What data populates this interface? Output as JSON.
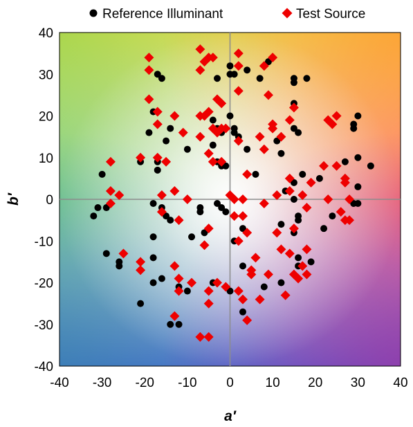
{
  "chart_data": {
    "type": "scatter",
    "xlabel": "a′",
    "ylabel": "b′",
    "xlim": [
      -40,
      40
    ],
    "ylim": [
      -40,
      40
    ],
    "x_ticks": [
      -40,
      -30,
      -20,
      -10,
      0,
      10,
      20,
      30,
      40
    ],
    "y_ticks": [
      -40,
      -30,
      -20,
      -10,
      0,
      10,
      20,
      30,
      40
    ],
    "grid": false,
    "legend_position": "top",
    "background": "a* b* color-space gradient",
    "series": [
      {
        "name": "Reference Illuminant",
        "marker": "circle",
        "color": "#000000",
        "points": [
          [
            -17,
            30
          ],
          [
            -16,
            29
          ],
          [
            0,
            32
          ],
          [
            -3,
            29
          ],
          [
            0,
            30
          ],
          [
            1,
            30
          ],
          [
            4,
            31
          ],
          [
            7,
            29
          ],
          [
            9,
            33
          ],
          [
            15,
            28
          ],
          [
            15,
            29
          ],
          [
            18,
            29
          ],
          [
            -14,
            17
          ],
          [
            -18,
            21
          ],
          [
            -19,
            16
          ],
          [
            -15,
            14
          ],
          [
            -4,
            19
          ],
          [
            -3,
            17
          ],
          [
            -2,
            16
          ],
          [
            0,
            20
          ],
          [
            1,
            17
          ],
          [
            2,
            15
          ],
          [
            4,
            12
          ],
          [
            10,
            17
          ],
          [
            15,
            23
          ],
          [
            15,
            17
          ],
          [
            16,
            16
          ],
          [
            29,
            18
          ],
          [
            29,
            17
          ],
          [
            30,
            20
          ],
          [
            -10,
            12
          ],
          [
            -21,
            9
          ],
          [
            -17,
            9
          ],
          [
            -17,
            7
          ],
          [
            -4,
            13
          ],
          [
            -3,
            9
          ],
          [
            -2,
            8
          ],
          [
            -1,
            8
          ],
          [
            1,
            16
          ],
          [
            6,
            6
          ],
          [
            11,
            14
          ],
          [
            12,
            11
          ],
          [
            13,
            2
          ],
          [
            15,
            4
          ],
          [
            15,
            0
          ],
          [
            17,
            6
          ],
          [
            21,
            5
          ],
          [
            27,
            9
          ],
          [
            30,
            10
          ],
          [
            30,
            3
          ],
          [
            33,
            8
          ],
          [
            -30,
            6
          ],
          [
            -31,
            -2
          ],
          [
            -32,
            -4
          ],
          [
            -29,
            -2
          ],
          [
            -18,
            -1
          ],
          [
            -16,
            -2
          ],
          [
            -15,
            -4
          ],
          [
            -7,
            -2
          ],
          [
            -7,
            -3
          ],
          [
            -3,
            -1
          ],
          [
            -2,
            -2
          ],
          [
            -1,
            -3
          ],
          [
            3,
            -7
          ],
          [
            1,
            -10
          ],
          [
            12,
            -6
          ],
          [
            15,
            -8
          ],
          [
            16,
            -4
          ],
          [
            16,
            -5
          ],
          [
            22,
            -7
          ],
          [
            24,
            -4
          ],
          [
            29,
            -1
          ],
          [
            30,
            -1
          ],
          [
            -18,
            -9
          ],
          [
            -14,
            -5
          ],
          [
            -9,
            -9
          ],
          [
            -6,
            -8
          ],
          [
            -29,
            -13
          ],
          [
            -26,
            -15
          ],
          [
            -26,
            -16
          ],
          [
            -18,
            -14
          ],
          [
            -18,
            -20
          ],
          [
            -16,
            -19
          ],
          [
            -12,
            -21
          ],
          [
            -4,
            -20
          ],
          [
            0,
            -22
          ],
          [
            3,
            -16
          ],
          [
            8,
            -21
          ],
          [
            12,
            -20
          ],
          [
            16,
            -14
          ],
          [
            16,
            -16
          ],
          [
            19,
            -15
          ],
          [
            -21,
            -25
          ],
          [
            -14,
            -30
          ],
          [
            -12,
            -30
          ],
          [
            3,
            -27
          ],
          [
            -10,
            -22
          ]
        ]
      },
      {
        "name": "Test Source",
        "marker": "diamond",
        "color": "#ee0000",
        "points": [
          [
            -19,
            34
          ],
          [
            -19,
            31
          ],
          [
            -7,
            36
          ],
          [
            -5,
            34
          ],
          [
            -6,
            33
          ],
          [
            -4,
            34
          ],
          [
            2,
            32
          ],
          [
            2,
            35
          ],
          [
            8,
            32
          ],
          [
            10,
            34
          ],
          [
            -7,
            31
          ],
          [
            2,
            26
          ],
          [
            -19,
            24
          ],
          [
            -17,
            21
          ],
          [
            -17,
            18
          ],
          [
            -13,
            20
          ],
          [
            -7,
            20
          ],
          [
            -6,
            20
          ],
          [
            -5,
            21
          ],
          [
            -2,
            23
          ],
          [
            -3,
            24
          ],
          [
            -4,
            17
          ],
          [
            -3,
            16
          ],
          [
            -2,
            17
          ],
          [
            -1,
            17
          ],
          [
            9,
            25
          ],
          [
            10,
            18
          ],
          [
            10,
            17
          ],
          [
            14,
            19
          ],
          [
            15,
            22
          ],
          [
            23,
            19
          ],
          [
            24,
            18
          ],
          [
            25,
            20
          ],
          [
            -21,
            10
          ],
          [
            -17,
            10
          ],
          [
            -15,
            9
          ],
          [
            -11,
            16
          ],
          [
            -7,
            15
          ],
          [
            -5,
            11
          ],
          [
            -4,
            9
          ],
          [
            -2,
            9
          ],
          [
            2,
            14
          ],
          [
            7,
            15
          ],
          [
            8,
            12
          ],
          [
            12,
            15
          ],
          [
            22,
            8
          ],
          [
            25,
            8
          ],
          [
            27,
            5
          ],
          [
            -28,
            9
          ],
          [
            -28,
            2
          ],
          [
            -26,
            1
          ],
          [
            -28,
            -1
          ],
          [
            -16,
            1
          ],
          [
            -13,
            2
          ],
          [
            -12,
            -5
          ],
          [
            -10,
            0
          ],
          [
            0,
            1
          ],
          [
            1,
            0
          ],
          [
            3,
            0
          ],
          [
            4,
            6
          ],
          [
            8,
            -1
          ],
          [
            11,
            1
          ],
          [
            14,
            5
          ],
          [
            14,
            2
          ],
          [
            17,
            1
          ],
          [
            18,
            -2
          ],
          [
            19,
            4
          ],
          [
            23,
            0
          ],
          [
            27,
            4
          ],
          [
            26,
            -3
          ],
          [
            28,
            0
          ],
          [
            27,
            -5
          ],
          [
            28,
            -5
          ],
          [
            -16,
            -3
          ],
          [
            -6,
            -11
          ],
          [
            -5,
            -7
          ],
          [
            1,
            -4
          ],
          [
            2,
            -10
          ],
          [
            3,
            -4
          ],
          [
            4,
            -8
          ],
          [
            5,
            -17
          ],
          [
            6,
            -14
          ],
          [
            11,
            -8
          ],
          [
            12,
            -12
          ],
          [
            14,
            -13
          ],
          [
            15,
            -7
          ],
          [
            17,
            -16
          ],
          [
            18,
            -12
          ],
          [
            -25,
            -13
          ],
          [
            -21,
            -15
          ],
          [
            -21,
            -17
          ],
          [
            -13,
            -16
          ],
          [
            -12,
            -19
          ],
          [
            -12,
            -22
          ],
          [
            -9,
            -20
          ],
          [
            -5,
            -22
          ],
          [
            -3,
            -20
          ],
          [
            -1,
            -21
          ],
          [
            2,
            -22
          ],
          [
            5,
            -18
          ],
          [
            9,
            -18
          ],
          [
            -5,
            -25
          ],
          [
            -13,
            -28
          ],
          [
            -7,
            -33
          ],
          [
            -5,
            -33
          ],
          [
            3,
            -24
          ],
          [
            4,
            -29
          ],
          [
            7,
            -24
          ],
          [
            13,
            -23
          ],
          [
            15,
            -18
          ],
          [
            16,
            -19
          ],
          [
            18,
            -18
          ]
        ]
      }
    ]
  }
}
